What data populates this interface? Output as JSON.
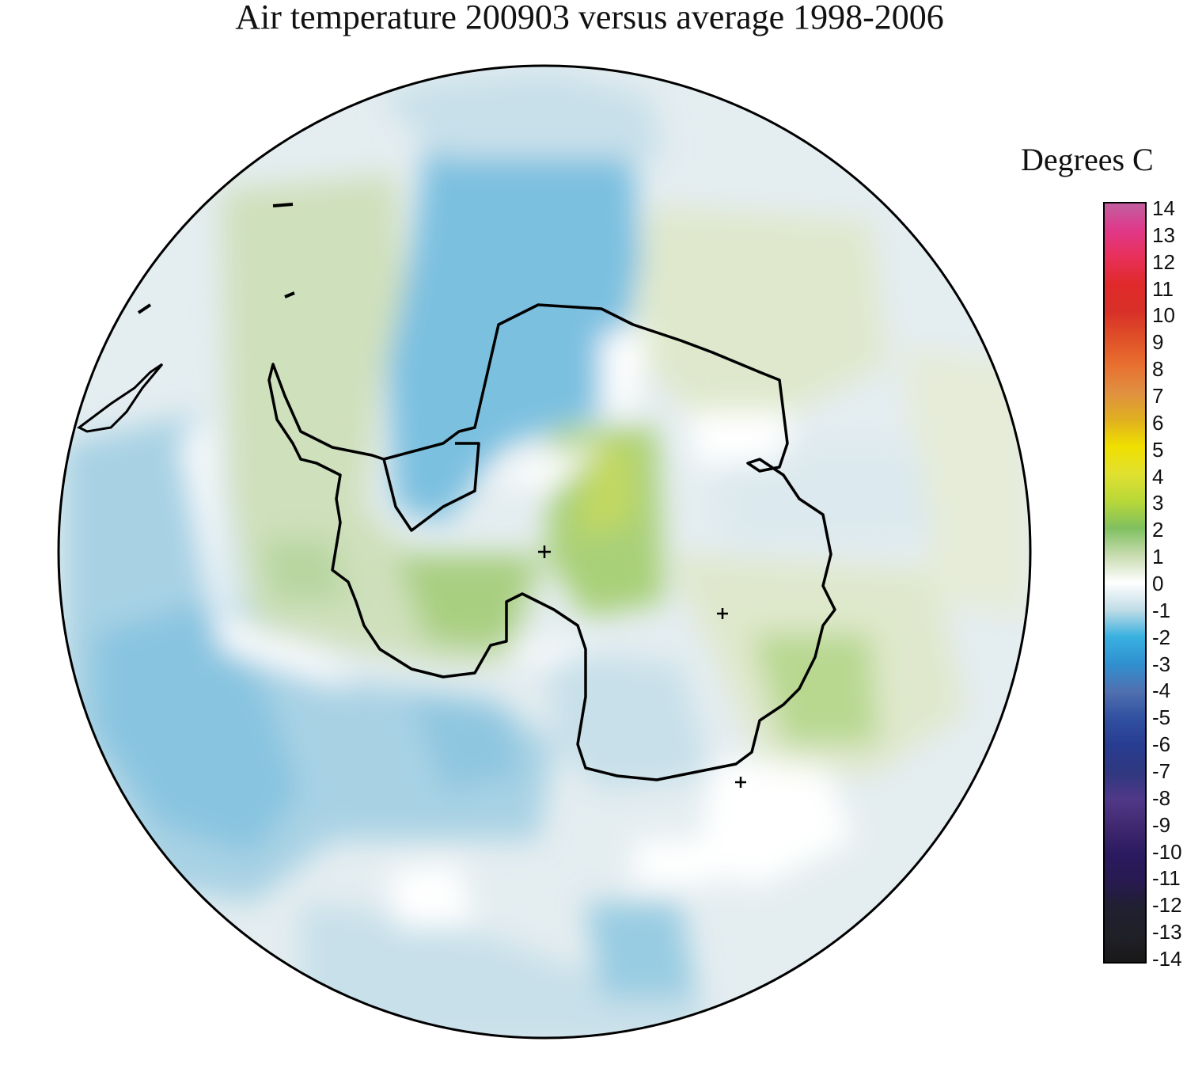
{
  "title": "Air temperature 200903 versus average 1998-2006",
  "colorbar": {
    "units_label": "Degrees C",
    "min": -14,
    "max": 14,
    "ticks": [
      "14",
      "13",
      "12",
      "11",
      "10",
      "9",
      "8",
      "7",
      "6",
      "5",
      "4",
      "3",
      "2",
      "1",
      "0",
      "-1",
      "-2",
      "-3",
      "-4",
      "-5",
      "-6",
      "-7",
      "-8",
      "-9",
      "-10",
      "-11",
      "-12",
      "-13",
      "-14"
    ],
    "colors": {
      "14": "#c060a0",
      "13": "#e0388a",
      "12": "#e8305a",
      "11": "#e02a2a",
      "10": "#d83028",
      "9": "#e05028",
      "8": "#e87030",
      "7": "#e09040",
      "6": "#e0b020",
      "5": "#f0e000",
      "4": "#e0e030",
      "3": "#b8d838",
      "2": "#80c060",
      "1": "#c8dcb0",
      "0": "#ffffff",
      "-1": "#c0dce6",
      "-2": "#38b0e0",
      "-3": "#3090d0",
      "-4": "#5070b0",
      "-5": "#3050a0",
      "-6": "#283c90",
      "-7": "#303880",
      "-8": "#503888",
      "-9": "#402870",
      "-10": "#2a1a60",
      "-11": "#281a50",
      "-12": "#202030",
      "-13": "#202028",
      "-14": "#181818"
    }
  },
  "map": {
    "projection": "south-polar-stereographic",
    "markers": [
      "+",
      "+",
      "+"
    ]
  }
}
